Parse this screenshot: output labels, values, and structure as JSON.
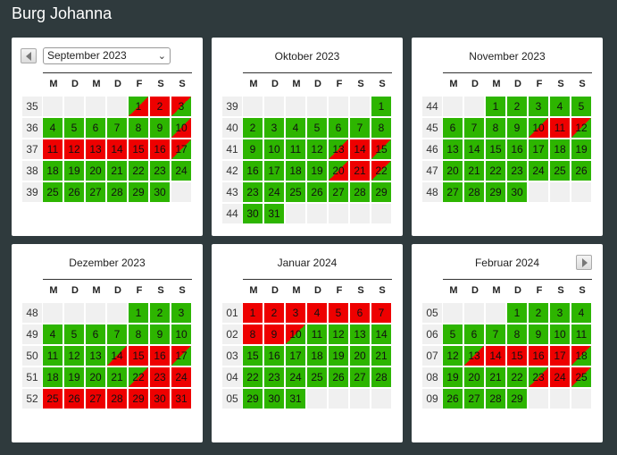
{
  "page": {
    "title": "Burg Johanna"
  },
  "colors": {
    "free": "#2db500",
    "booked": "#ee0000",
    "empty": "#f0f0f0",
    "background": "#2f3a3d"
  },
  "dow": [
    "M",
    "D",
    "M",
    "D",
    "F",
    "S",
    "S"
  ],
  "months": [
    {
      "title": "September 2023",
      "has_select": true,
      "nav": "prev",
      "weeks": [
        {
          "wk": "35",
          "days": [
            [
              "",
              ""
            ],
            [
              "",
              ""
            ],
            [
              "",
              ""
            ],
            [
              "",
              ""
            ],
            [
              "1",
              "gr"
            ],
            [
              "2",
              "r"
            ],
            [
              "3",
              "rg"
            ]
          ]
        },
        {
          "wk": "36",
          "days": [
            [
              "4",
              "g"
            ],
            [
              "5",
              "g"
            ],
            [
              "6",
              "g"
            ],
            [
              "7",
              "g"
            ],
            [
              "8",
              "g"
            ],
            [
              "9",
              "g"
            ],
            [
              "10",
              "gr"
            ]
          ]
        },
        {
          "wk": "37",
          "days": [
            [
              "11",
              "r"
            ],
            [
              "12",
              "r"
            ],
            [
              "13",
              "r"
            ],
            [
              "14",
              "r"
            ],
            [
              "15",
              "r"
            ],
            [
              "16",
              "r"
            ],
            [
              "17",
              "rg"
            ]
          ]
        },
        {
          "wk": "38",
          "days": [
            [
              "18",
              "g"
            ],
            [
              "19",
              "g"
            ],
            [
              "20",
              "g"
            ],
            [
              "21",
              "g"
            ],
            [
              "22",
              "g"
            ],
            [
              "23",
              "g"
            ],
            [
              "24",
              "g"
            ]
          ]
        },
        {
          "wk": "39",
          "days": [
            [
              "25",
              "g"
            ],
            [
              "26",
              "g"
            ],
            [
              "27",
              "g"
            ],
            [
              "28",
              "g"
            ],
            [
              "29",
              "g"
            ],
            [
              "30",
              "g"
            ],
            [
              "",
              ""
            ]
          ]
        }
      ]
    },
    {
      "title": "Oktober 2023",
      "has_select": false,
      "nav": "",
      "weeks": [
        {
          "wk": "39",
          "days": [
            [
              "",
              ""
            ],
            [
              "",
              ""
            ],
            [
              "",
              ""
            ],
            [
              "",
              ""
            ],
            [
              "",
              ""
            ],
            [
              "",
              ""
            ],
            [
              "1",
              "g"
            ]
          ]
        },
        {
          "wk": "40",
          "days": [
            [
              "2",
              "g"
            ],
            [
              "3",
              "g"
            ],
            [
              "4",
              "g"
            ],
            [
              "5",
              "g"
            ],
            [
              "6",
              "g"
            ],
            [
              "7",
              "g"
            ],
            [
              "8",
              "g"
            ]
          ]
        },
        {
          "wk": "41",
          "days": [
            [
              "9",
              "g"
            ],
            [
              "10",
              "g"
            ],
            [
              "11",
              "g"
            ],
            [
              "12",
              "g"
            ],
            [
              "13",
              "gr"
            ],
            [
              "14",
              "r"
            ],
            [
              "15",
              "rg"
            ]
          ]
        },
        {
          "wk": "42",
          "days": [
            [
              "16",
              "g"
            ],
            [
              "17",
              "g"
            ],
            [
              "18",
              "g"
            ],
            [
              "19",
              "g"
            ],
            [
              "20",
              "gr"
            ],
            [
              "21",
              "r"
            ],
            [
              "22",
              "rg"
            ]
          ]
        },
        {
          "wk": "43",
          "days": [
            [
              "23",
              "g"
            ],
            [
              "24",
              "g"
            ],
            [
              "25",
              "g"
            ],
            [
              "26",
              "g"
            ],
            [
              "27",
              "g"
            ],
            [
              "28",
              "g"
            ],
            [
              "29",
              "g"
            ]
          ]
        },
        {
          "wk": "44",
          "days": [
            [
              "30",
              "g"
            ],
            [
              "31",
              "g"
            ],
            [
              "",
              ""
            ],
            [
              "",
              ""
            ],
            [
              "",
              ""
            ],
            [
              "",
              ""
            ],
            [
              "",
              ""
            ]
          ]
        }
      ]
    },
    {
      "title": "November 2023",
      "has_select": false,
      "nav": "",
      "weeks": [
        {
          "wk": "44",
          "days": [
            [
              "",
              ""
            ],
            [
              "",
              ""
            ],
            [
              "1",
              "g"
            ],
            [
              "2",
              "g"
            ],
            [
              "3",
              "g"
            ],
            [
              "4",
              "g"
            ],
            [
              "5",
              "g"
            ]
          ]
        },
        {
          "wk": "45",
          "days": [
            [
              "6",
              "g"
            ],
            [
              "7",
              "g"
            ],
            [
              "8",
              "g"
            ],
            [
              "9",
              "g"
            ],
            [
              "10",
              "gr"
            ],
            [
              "11",
              "r"
            ],
            [
              "12",
              "rg"
            ]
          ]
        },
        {
          "wk": "46",
          "days": [
            [
              "13",
              "g"
            ],
            [
              "14",
              "g"
            ],
            [
              "15",
              "g"
            ],
            [
              "16",
              "g"
            ],
            [
              "17",
              "g"
            ],
            [
              "18",
              "g"
            ],
            [
              "19",
              "g"
            ]
          ]
        },
        {
          "wk": "47",
          "days": [
            [
              "20",
              "g"
            ],
            [
              "21",
              "g"
            ],
            [
              "22",
              "g"
            ],
            [
              "23",
              "g"
            ],
            [
              "24",
              "g"
            ],
            [
              "25",
              "g"
            ],
            [
              "26",
              "g"
            ]
          ]
        },
        {
          "wk": "48",
          "days": [
            [
              "27",
              "g"
            ],
            [
              "28",
              "g"
            ],
            [
              "29",
              "g"
            ],
            [
              "30",
              "g"
            ],
            [
              "",
              ""
            ],
            [
              "",
              ""
            ],
            [
              "",
              ""
            ]
          ]
        }
      ]
    },
    {
      "title": "Dezember 2023",
      "has_select": false,
      "nav": "",
      "weeks": [
        {
          "wk": "48",
          "days": [
            [
              "",
              ""
            ],
            [
              "",
              ""
            ],
            [
              "",
              ""
            ],
            [
              "",
              ""
            ],
            [
              "1",
              "g"
            ],
            [
              "2",
              "g"
            ],
            [
              "3",
              "g"
            ]
          ]
        },
        {
          "wk": "49",
          "days": [
            [
              "4",
              "g"
            ],
            [
              "5",
              "g"
            ],
            [
              "6",
              "g"
            ],
            [
              "7",
              "g"
            ],
            [
              "8",
              "g"
            ],
            [
              "9",
              "g"
            ],
            [
              "10",
              "g"
            ]
          ]
        },
        {
          "wk": "50",
          "days": [
            [
              "11",
              "g"
            ],
            [
              "12",
              "g"
            ],
            [
              "13",
              "g"
            ],
            [
              "14",
              "gr"
            ],
            [
              "15",
              "r"
            ],
            [
              "16",
              "r"
            ],
            [
              "17",
              "rg"
            ]
          ]
        },
        {
          "wk": "51",
          "days": [
            [
              "18",
              "g"
            ],
            [
              "19",
              "g"
            ],
            [
              "20",
              "g"
            ],
            [
              "21",
              "g"
            ],
            [
              "22",
              "gr"
            ],
            [
              "23",
              "r"
            ],
            [
              "24",
              "r"
            ]
          ]
        },
        {
          "wk": "52",
          "days": [
            [
              "25",
              "r"
            ],
            [
              "26",
              "r"
            ],
            [
              "27",
              "r"
            ],
            [
              "28",
              "r"
            ],
            [
              "29",
              "r"
            ],
            [
              "30",
              "r"
            ],
            [
              "31",
              "r"
            ]
          ]
        }
      ]
    },
    {
      "title": "Januar 2024",
      "has_select": false,
      "nav": "",
      "weeks": [
        {
          "wk": "01",
          "days": [
            [
              "1",
              "r"
            ],
            [
              "2",
              "r"
            ],
            [
              "3",
              "r"
            ],
            [
              "4",
              "r"
            ],
            [
              "5",
              "r"
            ],
            [
              "6",
              "r"
            ],
            [
              "7",
              "r"
            ]
          ]
        },
        {
          "wk": "02",
          "days": [
            [
              "8",
              "r"
            ],
            [
              "9",
              "r"
            ],
            [
              "10",
              "rg"
            ],
            [
              "11",
              "g"
            ],
            [
              "12",
              "g"
            ],
            [
              "13",
              "g"
            ],
            [
              "14",
              "g"
            ]
          ]
        },
        {
          "wk": "03",
          "days": [
            [
              "15",
              "g"
            ],
            [
              "16",
              "g"
            ],
            [
              "17",
              "g"
            ],
            [
              "18",
              "g"
            ],
            [
              "19",
              "g"
            ],
            [
              "20",
              "g"
            ],
            [
              "21",
              "g"
            ]
          ]
        },
        {
          "wk": "04",
          "days": [
            [
              "22",
              "g"
            ],
            [
              "23",
              "g"
            ],
            [
              "24",
              "g"
            ],
            [
              "25",
              "g"
            ],
            [
              "26",
              "g"
            ],
            [
              "27",
              "g"
            ],
            [
              "28",
              "g"
            ]
          ]
        },
        {
          "wk": "05",
          "days": [
            [
              "29",
              "g"
            ],
            [
              "30",
              "g"
            ],
            [
              "31",
              "g"
            ],
            [
              "",
              ""
            ],
            [
              "",
              ""
            ],
            [
              "",
              ""
            ],
            [
              "",
              ""
            ]
          ]
        }
      ]
    },
    {
      "title": "Februar 2024",
      "has_select": false,
      "nav": "next",
      "weeks": [
        {
          "wk": "05",
          "days": [
            [
              "",
              ""
            ],
            [
              "",
              ""
            ],
            [
              "",
              ""
            ],
            [
              "1",
              "g"
            ],
            [
              "2",
              "g"
            ],
            [
              "3",
              "g"
            ],
            [
              "4",
              "g"
            ]
          ]
        },
        {
          "wk": "06",
          "days": [
            [
              "5",
              "g"
            ],
            [
              "6",
              "g"
            ],
            [
              "7",
              "g"
            ],
            [
              "8",
              "g"
            ],
            [
              "9",
              "g"
            ],
            [
              "10",
              "g"
            ],
            [
              "11",
              "g"
            ]
          ]
        },
        {
          "wk": "07",
          "days": [
            [
              "12",
              "g"
            ],
            [
              "13",
              "gr"
            ],
            [
              "14",
              "r"
            ],
            [
              "15",
              "r"
            ],
            [
              "16",
              "r"
            ],
            [
              "17",
              "r"
            ],
            [
              "18",
              "rg"
            ]
          ]
        },
        {
          "wk": "08",
          "days": [
            [
              "19",
              "g"
            ],
            [
              "20",
              "g"
            ],
            [
              "21",
              "g"
            ],
            [
              "22",
              "g"
            ],
            [
              "23",
              "gr"
            ],
            [
              "24",
              "r"
            ],
            [
              "25",
              "rg"
            ]
          ]
        },
        {
          "wk": "09",
          "days": [
            [
              "26",
              "g"
            ],
            [
              "27",
              "g"
            ],
            [
              "28",
              "g"
            ],
            [
              "29",
              "g"
            ],
            [
              "",
              ""
            ],
            [
              "",
              ""
            ],
            [
              "",
              ""
            ]
          ]
        }
      ]
    }
  ]
}
